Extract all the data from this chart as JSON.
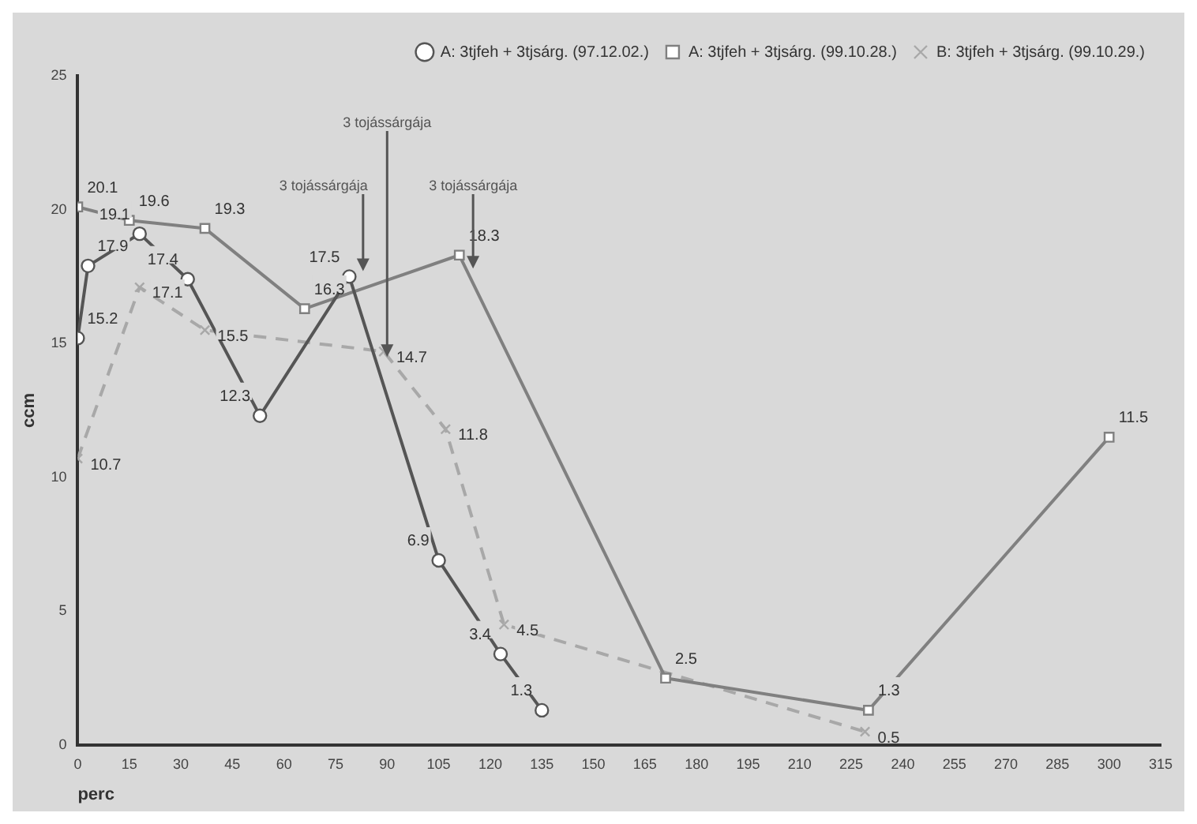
{
  "chart_data": {
    "type": "line",
    "xlabel": "perc",
    "ylabel": "ccm",
    "xlim": [
      0,
      315
    ],
    "xticks": [
      0,
      15,
      30,
      45,
      60,
      75,
      90,
      105,
      120,
      135,
      150,
      165,
      180,
      195,
      210,
      225,
      240,
      255,
      270,
      285,
      300,
      315
    ],
    "ylim": [
      0,
      25
    ],
    "yticks": [
      0,
      5,
      10,
      15,
      20,
      25
    ],
    "grid": false,
    "legend": "top right",
    "data_labels": true,
    "series": [
      {
        "name": "A: 3tjfeh + 3tjsárg. (97.12.02.)",
        "color": "#555555",
        "marker": "circle",
        "line_style": "solid",
        "x": [
          0,
          3,
          18,
          32,
          53,
          79,
          105,
          123,
          135
        ],
        "values": [
          15.2,
          17.9,
          19.1,
          17.4,
          12.3,
          17.5,
          6.9,
          3.4,
          1.3
        ]
      },
      {
        "name": "A: 3tjfeh + 3tjsárg. (99.10.28.)",
        "color": "#808080",
        "marker": "square",
        "line_style": "solid",
        "x": [
          0,
          15,
          37,
          66,
          111,
          171,
          230,
          300
        ],
        "values": [
          20.1,
          19.6,
          19.3,
          16.3,
          18.3,
          2.5,
          1.3,
          11.5
        ]
      },
      {
        "name": "B: 3tjfeh + 3tjsárg. (99.10.29.)",
        "color": "#a8a8a8",
        "marker": "cross",
        "line_style": "dashed",
        "x": [
          0,
          18,
          37,
          89,
          107,
          124,
          229
        ],
        "values": [
          10.7,
          17.1,
          15.5,
          14.7,
          11.8,
          4.5,
          0.5
        ]
      }
    ],
    "annotations": [
      {
        "text": "3 tojássárgája",
        "x": 83,
        "y": 17.7
      },
      {
        "text": "3 tojássárgája",
        "x": 90,
        "y": 14.5
      },
      {
        "text": "3 tojássárgája",
        "x": 115,
        "y": 17.8
      }
    ]
  }
}
